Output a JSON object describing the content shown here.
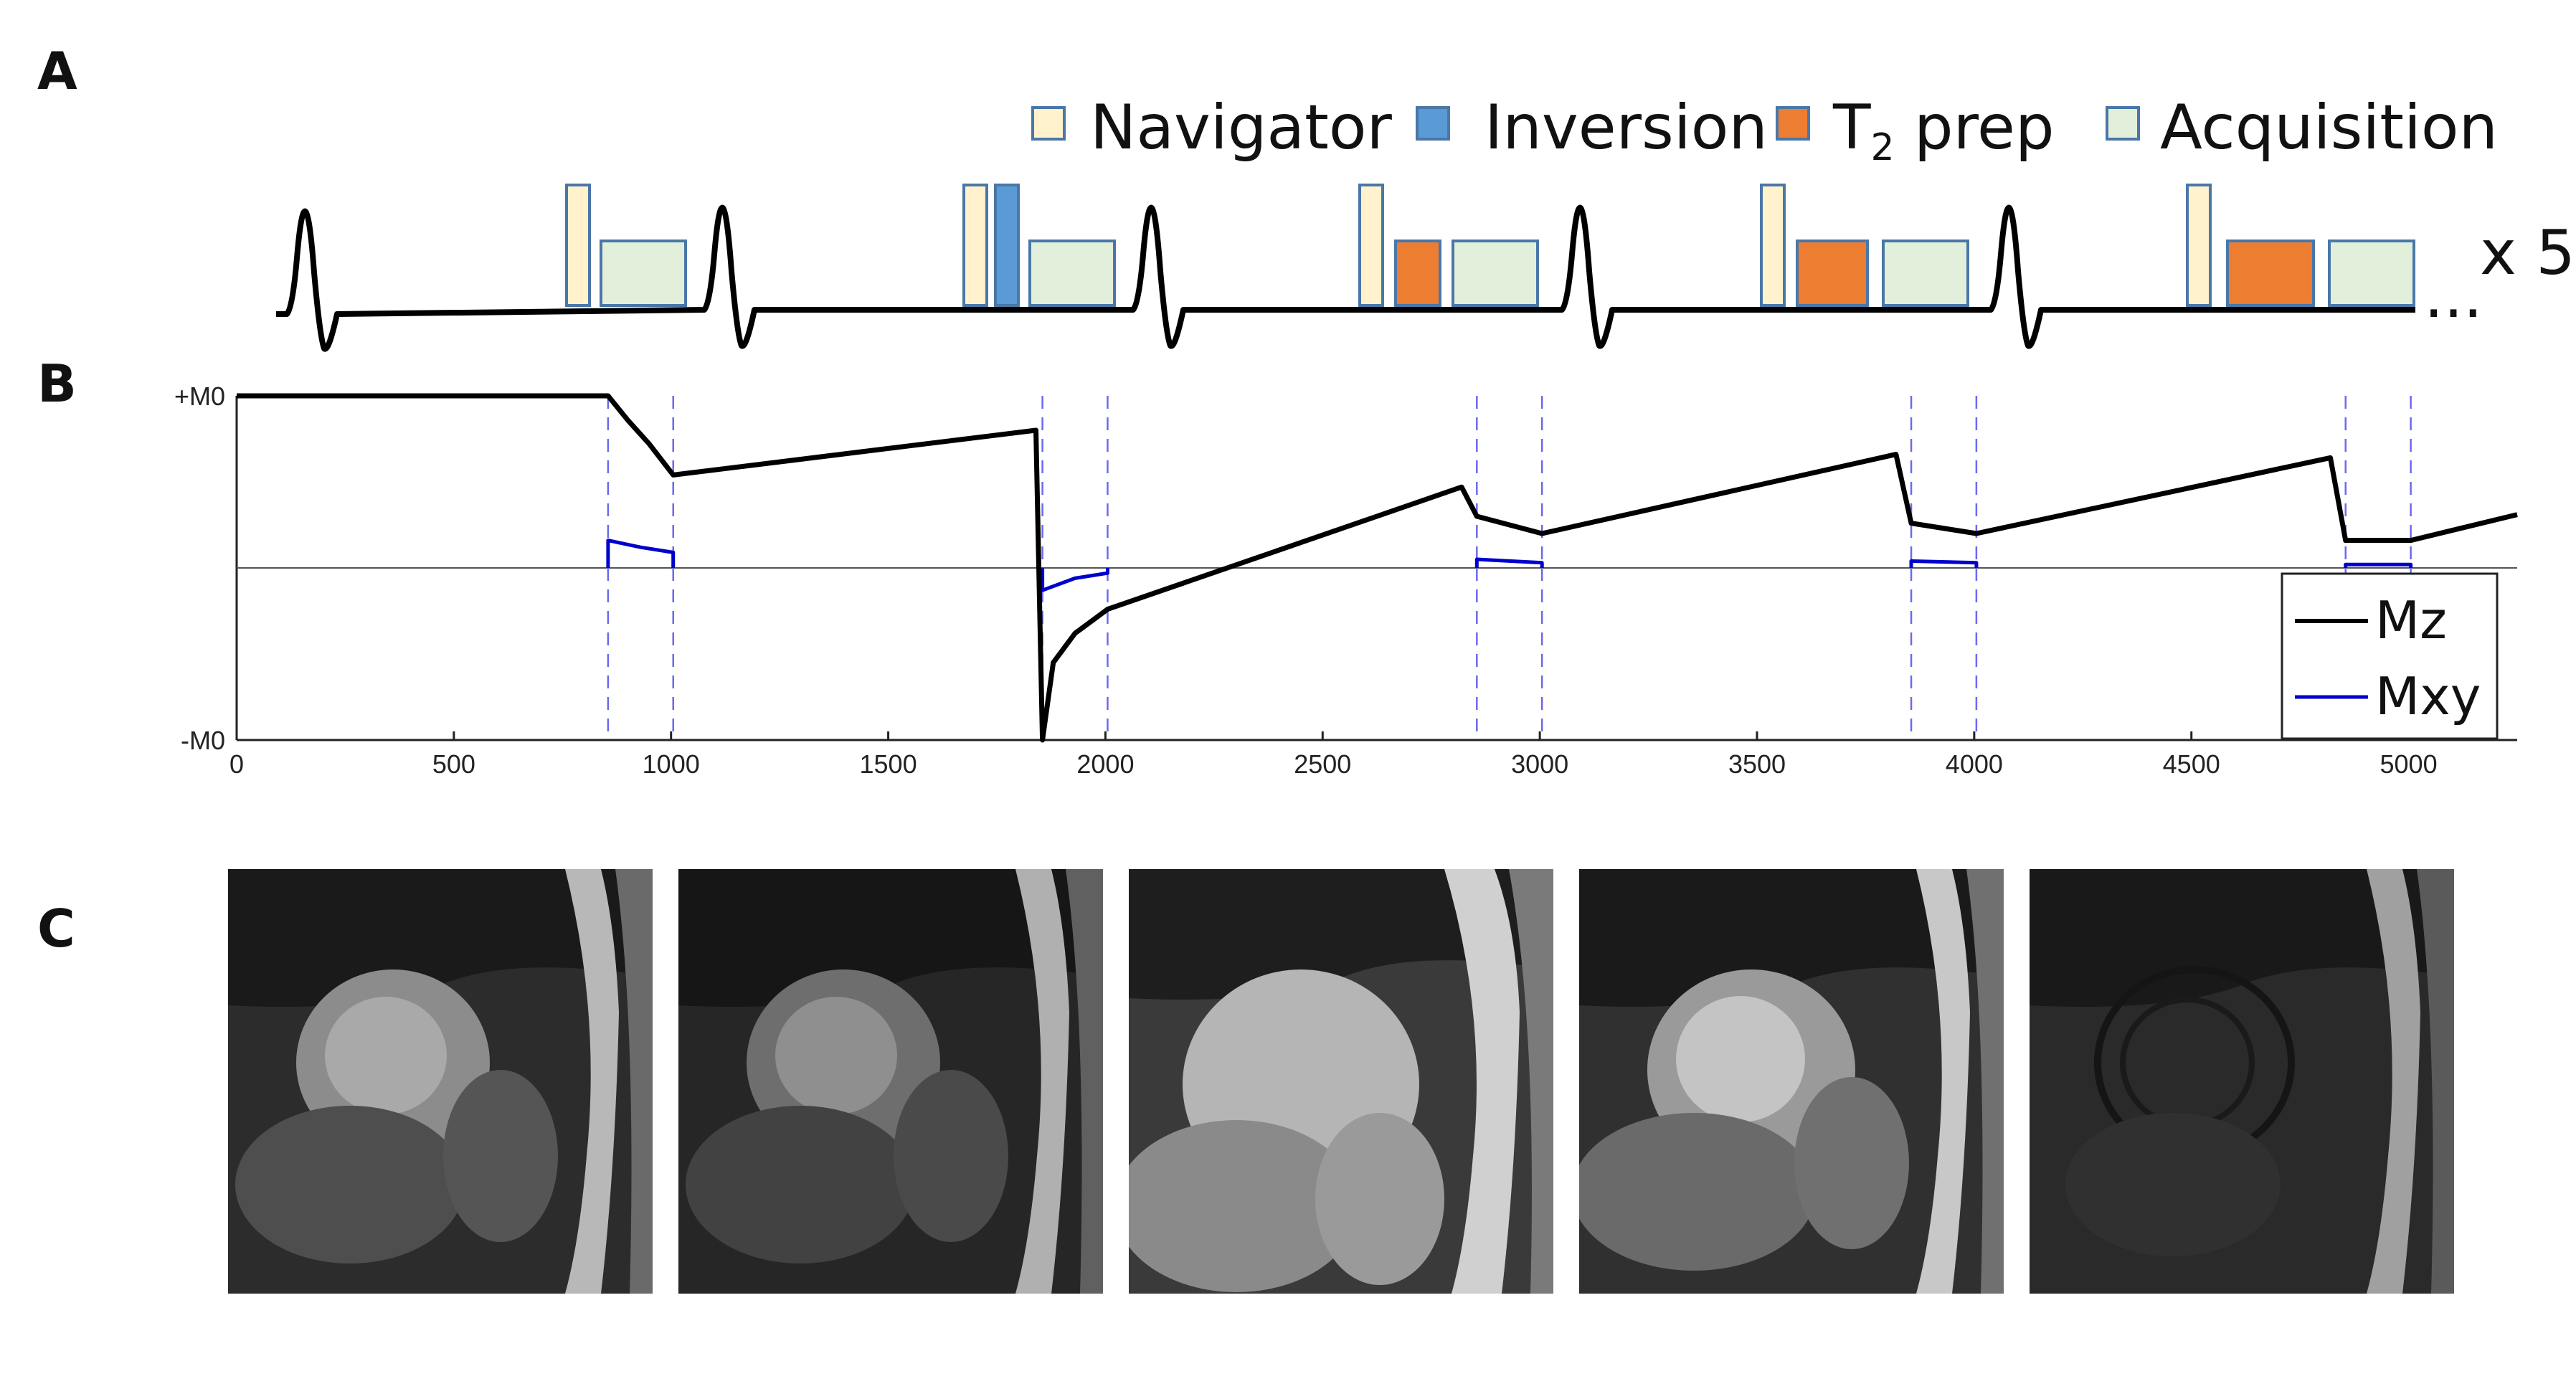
{
  "panels": {
    "a": "A",
    "b": "B",
    "c": "C"
  },
  "legend": {
    "items": [
      {
        "label": "Navigator",
        "color": "#fff2cc",
        "border": "#4a77a8"
      },
      {
        "label": "Inversion",
        "color": "#5b9bd5",
        "border": "#4a77a8"
      },
      {
        "label": "T",
        "sub": "2",
        "rest": " prep",
        "color": "#ed7d31",
        "border": "#4a77a8"
      },
      {
        "label": "Acquisition",
        "color": "#e2efda",
        "border": "#4a77a8"
      }
    ]
  },
  "sequence": {
    "repeat_label": "x 5",
    "ellipsis": "...",
    "heartbeats": [
      {
        "blocks": [
          "Navigator",
          "Acquisition"
        ]
      },
      {
        "blocks": [
          "Navigator",
          "Inversion",
          "Acquisition"
        ]
      },
      {
        "blocks": [
          "Navigator",
          "T2 prep (short)",
          "Acquisition"
        ]
      },
      {
        "blocks": [
          "Navigator",
          "T2 prep",
          "Acquisition"
        ]
      },
      {
        "blocks": [
          "Navigator",
          "T2 prep (long)",
          "Acquisition"
        ]
      }
    ]
  },
  "chart_data": {
    "type": "line",
    "xlim": [
      0,
      5250
    ],
    "ylim": [
      -1,
      1
    ],
    "xticks": [
      0,
      500,
      1000,
      1500,
      2000,
      2500,
      3000,
      3500,
      4000,
      4500,
      5000
    ],
    "xtick_labels": [
      "0",
      "500",
      "1000",
      "1500",
      "2000",
      "2500",
      "3000",
      "3500",
      "4000",
      "4500",
      "5000"
    ],
    "yticks": [
      1,
      -1
    ],
    "ytick_labels": [
      "+M0",
      "-M0"
    ],
    "vlines": [
      855,
      1005,
      1855,
      2005,
      2855,
      3005,
      3855,
      4005,
      4855,
      5005
    ],
    "series": [
      {
        "name": "Mz",
        "color": "#000000",
        "segments": [
          [
            [
              0,
              1.0
            ],
            [
              855,
              1.0
            ],
            [
              900,
              0.86
            ],
            [
              950,
              0.72
            ],
            [
              1005,
              0.54
            ],
            [
              1840,
              0.8
            ],
            [
              1855,
              -1.0
            ],
            [
              1880,
              -0.55
            ],
            [
              1930,
              -0.38
            ],
            [
              2005,
              -0.24
            ],
            [
              2820,
              0.47
            ],
            [
              2855,
              0.3
            ],
            [
              3005,
              0.2
            ],
            [
              3820,
              0.66
            ],
            [
              3855,
              0.26
            ],
            [
              4005,
              0.2
            ],
            [
              4820,
              0.64
            ],
            [
              4855,
              0.16
            ],
            [
              5005,
              0.16
            ],
            [
              5250,
              0.31
            ]
          ]
        ]
      },
      {
        "name": "Mxy",
        "color": "#0000cc",
        "segments": [
          [
            [
              855,
              0.0
            ],
            [
              855,
              0.16
            ],
            [
              930,
              0.12
            ],
            [
              1005,
              0.09
            ],
            [
              1005,
              0.0
            ]
          ],
          [
            [
              1855,
              0.0
            ],
            [
              1855,
              -0.13
            ],
            [
              1930,
              -0.06
            ],
            [
              2005,
              -0.03
            ],
            [
              2005,
              0.0
            ]
          ],
          [
            [
              2855,
              0.0
            ],
            [
              2855,
              0.05
            ],
            [
              3005,
              0.03
            ],
            [
              3005,
              0.0
            ]
          ],
          [
            [
              3855,
              0.0
            ],
            [
              3855,
              0.04
            ],
            [
              4005,
              0.03
            ],
            [
              4005,
              0.0
            ]
          ],
          [
            [
              4855,
              0.0
            ],
            [
              4855,
              0.02
            ],
            [
              5005,
              0.02
            ],
            [
              5005,
              0.0
            ]
          ]
        ]
      }
    ],
    "legend_position": "bottom-right"
  },
  "images": {
    "tiles": [
      {
        "name": "mri-image-1"
      },
      {
        "name": "mri-image-2"
      },
      {
        "name": "mri-image-3"
      },
      {
        "name": "mri-image-4"
      },
      {
        "name": "mri-image-5"
      }
    ]
  }
}
